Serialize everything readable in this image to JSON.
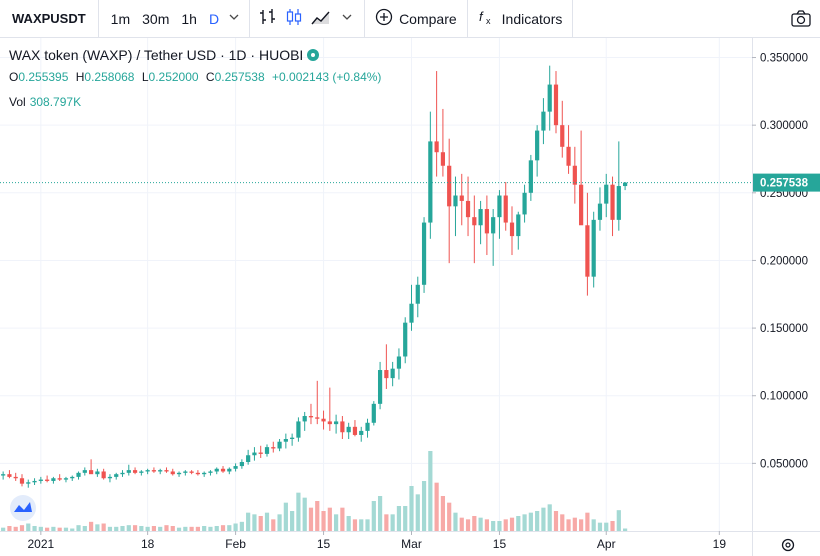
{
  "toolbar": {
    "symbol": "WAXPUSDT",
    "intervals": [
      "1m",
      "30m",
      "1h",
      "D"
    ],
    "active_interval": "D",
    "compare_label": "Compare",
    "indicators_label": "Indicators",
    "icons": [
      "chevron-down-icon",
      "bar-style-icon",
      "candles-icon",
      "area-icon",
      "plus-circle-icon",
      "fx-icon",
      "camera-icon"
    ]
  },
  "legend": {
    "title": "WAX token (WAXP) / Tether USD · 1D · HUOBI",
    "ohlc": [
      {
        "k": "O",
        "v": "0.255395"
      },
      {
        "k": "H",
        "v": "0.258068"
      },
      {
        "k": "L",
        "v": "0.252000"
      },
      {
        "k": "C",
        "v": "0.257538"
      }
    ],
    "change": "+0.002143 (+0.84%)",
    "vol_label": "Vol",
    "vol_value": "308.797K"
  },
  "colors": {
    "up": "#26a69a",
    "down": "#ef5350",
    "vol_up": "#a4d9d4",
    "vol_down": "#f7a9a7",
    "accent": "#2962ff"
  },
  "chart_data": {
    "type": "candlestick",
    "y_ticks": [
      "0.350000",
      "0.300000",
      "0.250000",
      "0.200000",
      "0.150000",
      "0.100000",
      "0.050000"
    ],
    "y_tick_values": [
      0.35,
      0.3,
      0.25,
      0.2,
      0.15,
      0.1,
      0.05
    ],
    "ylim": [
      0.0,
      0.36
    ],
    "x_ticks": [
      {
        "label": "2021",
        "day": 0
      },
      {
        "label": "18",
        "day": 17
      },
      {
        "label": "Feb",
        "day": 31
      },
      {
        "label": "15",
        "day": 45
      },
      {
        "label": "Mar",
        "day": 59
      },
      {
        "label": "15",
        "day": 73
      },
      {
        "label": "Apr",
        "day": 90
      },
      {
        "label": "19",
        "day": 108
      }
    ],
    "x_range_days": [
      -6.5,
      113.2
    ],
    "last_price": 0.257538,
    "last_price_label": "0.257538",
    "bars": [
      [
        0.041,
        0.044,
        0.038,
        0.042,
        4
      ],
      [
        0.042,
        0.045,
        0.039,
        0.04,
        6
      ],
      [
        0.04,
        0.043,
        0.037,
        0.039,
        5
      ],
      [
        0.039,
        0.042,
        0.033,
        0.035,
        7
      ],
      [
        0.035,
        0.038,
        0.032,
        0.036,
        9
      ],
      [
        0.036,
        0.039,
        0.034,
        0.037,
        6
      ],
      [
        0.037,
        0.04,
        0.035,
        0.038,
        5
      ],
      [
        0.038,
        0.041,
        0.036,
        0.037,
        4
      ],
      [
        0.037,
        0.04,
        0.035,
        0.039,
        5
      ],
      [
        0.039,
        0.042,
        0.037,
        0.038,
        4
      ],
      [
        0.038,
        0.04,
        0.036,
        0.039,
        4
      ],
      [
        0.039,
        0.041,
        0.037,
        0.04,
        3
      ],
      [
        0.04,
        0.044,
        0.038,
        0.043,
        7
      ],
      [
        0.043,
        0.047,
        0.041,
        0.045,
        6
      ],
      [
        0.045,
        0.053,
        0.043,
        0.042,
        11
      ],
      [
        0.042,
        0.046,
        0.04,
        0.044,
        8
      ],
      [
        0.044,
        0.046,
        0.038,
        0.039,
        9
      ],
      [
        0.039,
        0.042,
        0.036,
        0.04,
        5
      ],
      [
        0.04,
        0.043,
        0.038,
        0.042,
        5
      ],
      [
        0.042,
        0.045,
        0.04,
        0.043,
        6
      ],
      [
        0.043,
        0.049,
        0.041,
        0.045,
        7
      ],
      [
        0.045,
        0.047,
        0.042,
        0.043,
        7
      ],
      [
        0.043,
        0.045,
        0.041,
        0.044,
        6
      ],
      [
        0.044,
        0.046,
        0.042,
        0.045,
        5
      ],
      [
        0.045,
        0.047,
        0.043,
        0.044,
        6
      ],
      [
        0.044,
        0.046,
        0.042,
        0.045,
        5
      ],
      [
        0.045,
        0.047,
        0.043,
        0.044,
        7
      ],
      [
        0.044,
        0.046,
        0.041,
        0.042,
        6
      ],
      [
        0.042,
        0.044,
        0.04,
        0.043,
        4
      ],
      [
        0.043,
        0.045,
        0.041,
        0.044,
        5
      ],
      [
        0.044,
        0.045,
        0.042,
        0.043,
        5
      ],
      [
        0.043,
        0.045,
        0.041,
        0.042,
        5
      ],
      [
        0.042,
        0.044,
        0.04,
        0.043,
        6
      ],
      [
        0.043,
        0.045,
        0.041,
        0.044,
        5
      ],
      [
        0.044,
        0.047,
        0.042,
        0.046,
        6
      ],
      [
        0.046,
        0.048,
        0.043,
        0.044,
        7
      ],
      [
        0.044,
        0.047,
        0.042,
        0.046,
        7
      ],
      [
        0.046,
        0.05,
        0.044,
        0.048,
        9
      ],
      [
        0.048,
        0.053,
        0.046,
        0.051,
        11
      ],
      [
        0.051,
        0.06,
        0.049,
        0.056,
        22
      ],
      [
        0.056,
        0.062,
        0.052,
        0.058,
        20
      ],
      [
        0.058,
        0.063,
        0.054,
        0.057,
        18
      ],
      [
        0.057,
        0.064,
        0.055,
        0.062,
        22
      ],
      [
        0.062,
        0.066,
        0.058,
        0.061,
        14
      ],
      [
        0.061,
        0.068,
        0.059,
        0.066,
        20
      ],
      [
        0.066,
        0.072,
        0.061,
        0.068,
        34
      ],
      [
        0.068,
        0.072,
        0.063,
        0.069,
        24
      ],
      [
        0.069,
        0.084,
        0.066,
        0.081,
        46
      ],
      [
        0.081,
        0.088,
        0.074,
        0.085,
        40
      ],
      [
        0.085,
        0.094,
        0.079,
        0.084,
        28
      ],
      [
        0.084,
        0.111,
        0.079,
        0.083,
        36
      ],
      [
        0.083,
        0.089,
        0.075,
        0.081,
        24
      ],
      [
        0.081,
        0.106,
        0.074,
        0.079,
        28
      ],
      [
        0.079,
        0.086,
        0.072,
        0.081,
        20
      ],
      [
        0.081,
        0.085,
        0.068,
        0.073,
        28
      ],
      [
        0.073,
        0.08,
        0.068,
        0.077,
        18
      ],
      [
        0.077,
        0.082,
        0.07,
        0.071,
        14
      ],
      [
        0.071,
        0.077,
        0.066,
        0.074,
        14
      ],
      [
        0.074,
        0.083,
        0.069,
        0.08,
        14
      ],
      [
        0.08,
        0.096,
        0.078,
        0.094,
        36
      ],
      [
        0.094,
        0.125,
        0.09,
        0.119,
        42
      ],
      [
        0.119,
        0.138,
        0.105,
        0.113,
        20
      ],
      [
        0.113,
        0.125,
        0.107,
        0.12,
        20
      ],
      [
        0.12,
        0.135,
        0.112,
        0.129,
        30
      ],
      [
        0.129,
        0.158,
        0.124,
        0.154,
        30
      ],
      [
        0.154,
        0.182,
        0.148,
        0.168,
        54
      ],
      [
        0.168,
        0.188,
        0.158,
        0.182,
        44
      ],
      [
        0.182,
        0.232,
        0.176,
        0.228,
        60
      ],
      [
        0.228,
        0.31,
        0.216,
        0.288,
        96
      ],
      [
        0.288,
        0.34,
        0.262,
        0.28,
        58
      ],
      [
        0.28,
        0.312,
        0.262,
        0.27,
        42
      ],
      [
        0.27,
        0.29,
        0.198,
        0.24,
        34
      ],
      [
        0.24,
        0.262,
        0.218,
        0.248,
        22
      ],
      [
        0.248,
        0.264,
        0.226,
        0.244,
        16
      ],
      [
        0.244,
        0.262,
        0.218,
        0.232,
        14
      ],
      [
        0.232,
        0.248,
        0.198,
        0.226,
        18
      ],
      [
        0.226,
        0.244,
        0.212,
        0.238,
        16
      ],
      [
        0.238,
        0.248,
        0.204,
        0.22,
        14
      ],
      [
        0.22,
        0.238,
        0.196,
        0.232,
        12
      ],
      [
        0.232,
        0.252,
        0.216,
        0.248,
        12
      ],
      [
        0.248,
        0.258,
        0.222,
        0.228,
        14
      ],
      [
        0.228,
        0.24,
        0.204,
        0.218,
        16
      ],
      [
        0.218,
        0.236,
        0.208,
        0.234,
        18
      ],
      [
        0.234,
        0.256,
        0.228,
        0.25,
        20
      ],
      [
        0.25,
        0.278,
        0.244,
        0.274,
        22
      ],
      [
        0.274,
        0.3,
        0.262,
        0.296,
        24
      ],
      [
        0.296,
        0.32,
        0.286,
        0.31,
        28
      ],
      [
        0.31,
        0.344,
        0.296,
        0.33,
        32
      ],
      [
        0.33,
        0.34,
        0.294,
        0.3,
        24
      ],
      [
        0.3,
        0.318,
        0.276,
        0.284,
        20
      ],
      [
        0.284,
        0.3,
        0.264,
        0.27,
        14
      ],
      [
        0.27,
        0.284,
        0.242,
        0.256,
        16
      ],
      [
        0.256,
        0.296,
        0.232,
        0.226,
        14
      ],
      [
        0.226,
        0.25,
        0.174,
        0.188,
        22
      ],
      [
        0.188,
        0.236,
        0.18,
        0.23,
        14
      ],
      [
        0.23,
        0.254,
        0.222,
        0.242,
        10
      ],
      [
        0.242,
        0.264,
        0.232,
        0.256,
        10
      ],
      [
        0.256,
        0.262,
        0.218,
        0.23,
        12
      ],
      [
        0.23,
        0.288,
        0.222,
        0.255,
        25
      ],
      [
        0.255,
        0.258,
        0.252,
        0.2575,
        3
      ]
    ]
  }
}
